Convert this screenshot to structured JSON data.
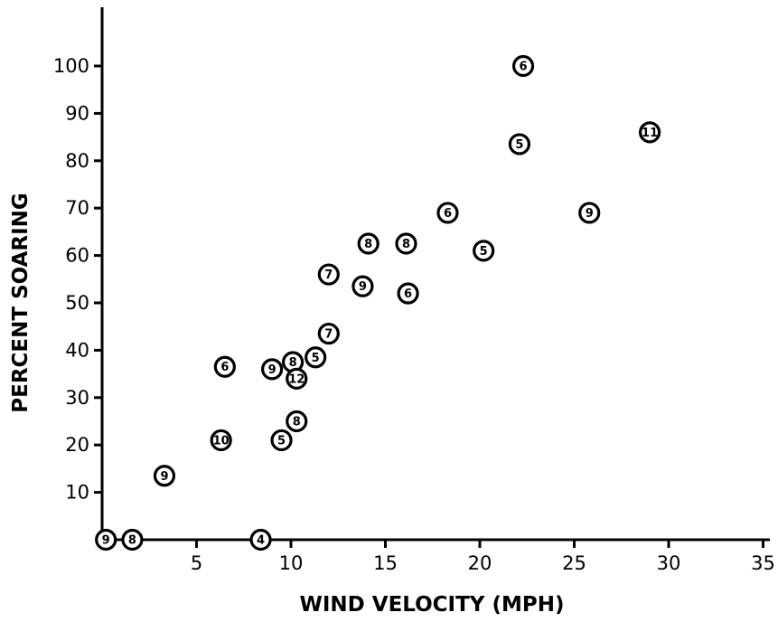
{
  "chart_data": {
    "type": "scatter",
    "title": "",
    "xlabel": "WIND VELOCITY (MPH)",
    "ylabel": "PERCENT SOARING",
    "xlim": [
      0,
      36
    ],
    "ylim": [
      0,
      110
    ],
    "x_ticks": [
      5,
      10,
      15,
      20,
      25,
      30,
      35
    ],
    "y_ticks": [
      10,
      20,
      30,
      40,
      50,
      60,
      70,
      80,
      90,
      100
    ],
    "grid": false,
    "point_style": "circled numbers (sample size)",
    "points": [
      {
        "x": 0.2,
        "y": 0,
        "label": "9"
      },
      {
        "x": 1.6,
        "y": 0,
        "label": "8"
      },
      {
        "x": 8.4,
        "y": 0,
        "label": "4"
      },
      {
        "x": 3.3,
        "y": 13.5,
        "label": "9"
      },
      {
        "x": 6.3,
        "y": 21,
        "label": "10"
      },
      {
        "x": 9.5,
        "y": 21,
        "label": "5"
      },
      {
        "x": 10.3,
        "y": 25,
        "label": "8"
      },
      {
        "x": 6.5,
        "y": 36.5,
        "label": "6"
      },
      {
        "x": 9.0,
        "y": 36,
        "label": "9"
      },
      {
        "x": 10.1,
        "y": 37.5,
        "label": "8"
      },
      {
        "x": 10.3,
        "y": 34,
        "label": "12"
      },
      {
        "x": 11.3,
        "y": 38.5,
        "label": "5"
      },
      {
        "x": 12.0,
        "y": 43.5,
        "label": "7"
      },
      {
        "x": 12.0,
        "y": 56,
        "label": "7"
      },
      {
        "x": 13.8,
        "y": 53.5,
        "label": "9"
      },
      {
        "x": 14.1,
        "y": 62.5,
        "label": "8"
      },
      {
        "x": 16.1,
        "y": 62.5,
        "label": "8"
      },
      {
        "x": 16.2,
        "y": 52,
        "label": "6"
      },
      {
        "x": 18.3,
        "y": 69,
        "label": "6"
      },
      {
        "x": 20.2,
        "y": 61,
        "label": "5"
      },
      {
        "x": 22.1,
        "y": 83.5,
        "label": "5"
      },
      {
        "x": 22.3,
        "y": 100,
        "label": "6"
      },
      {
        "x": 25.8,
        "y": 69,
        "label": "9"
      },
      {
        "x": 29.0,
        "y": 86,
        "label": "11"
      }
    ]
  }
}
